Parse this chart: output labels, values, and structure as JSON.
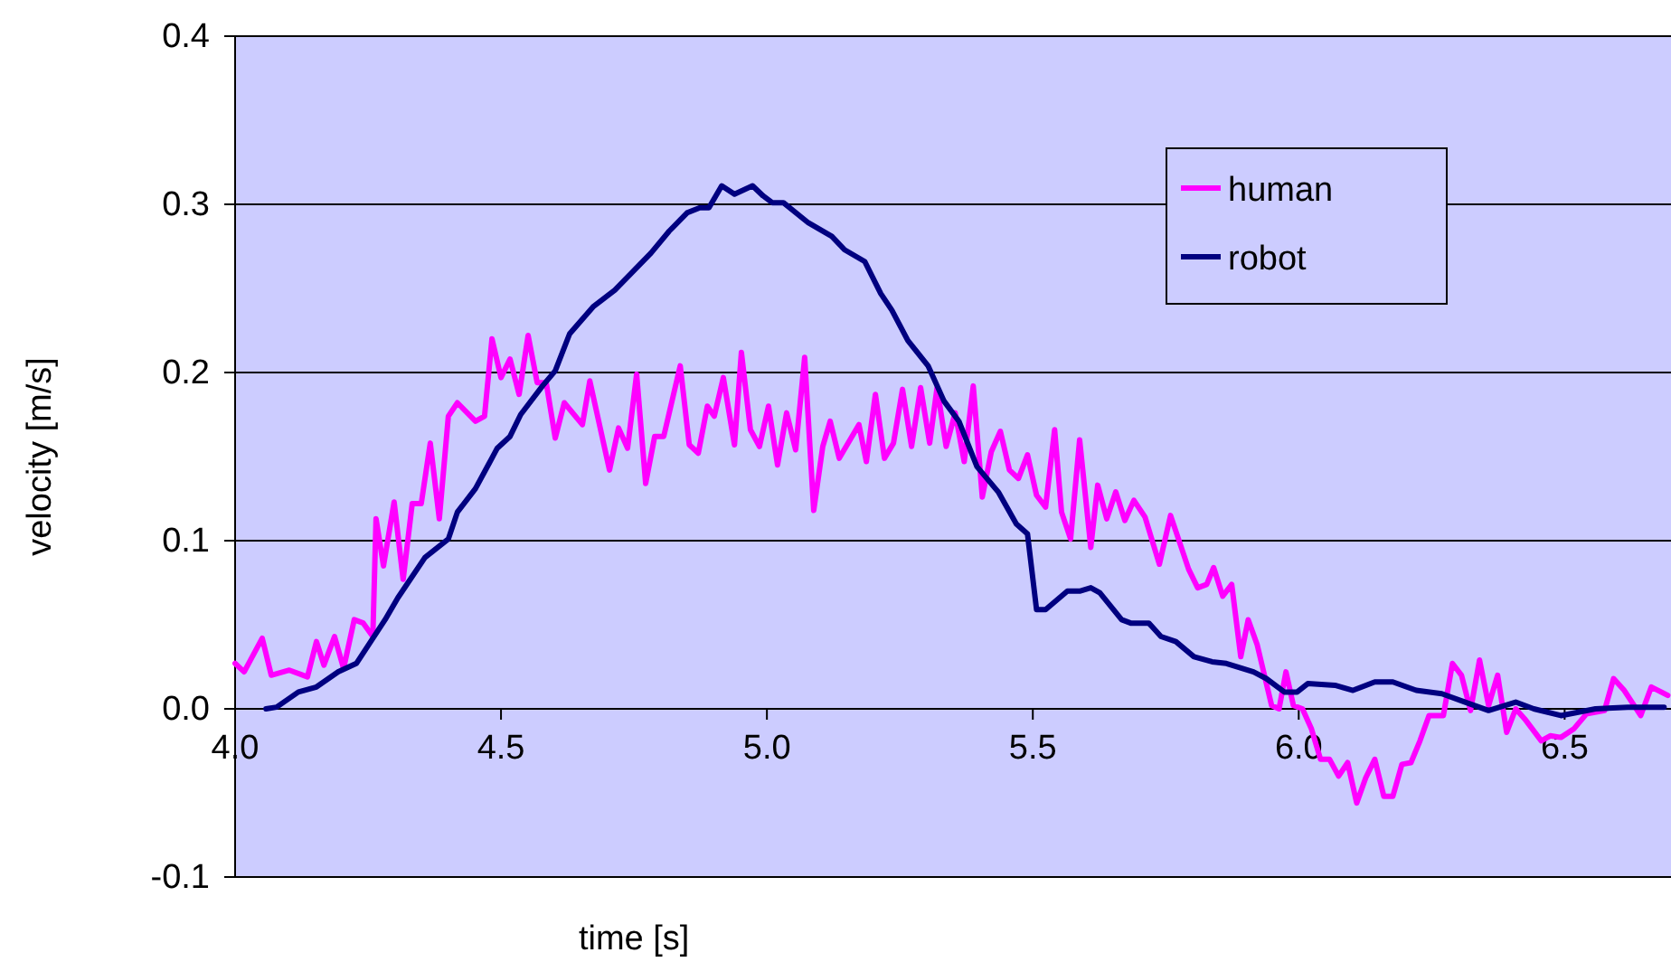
{
  "chart_data": {
    "type": "line",
    "xlabel": "time [s]",
    "ylabel": "velocity [m/s]",
    "xlim": [
      4.0,
      6.7
    ],
    "ylim": [
      -0.1,
      0.4
    ],
    "xticks": [
      {
        "value": 4.0,
        "label": "4.0"
      },
      {
        "value": 4.5,
        "label": "4.5"
      },
      {
        "value": 5.0,
        "label": "5.0"
      },
      {
        "value": 5.5,
        "label": "5.5"
      },
      {
        "value": 6.0,
        "label": "6.0"
      },
      {
        "value": 6.5,
        "label": "6.5"
      }
    ],
    "yticks": [
      {
        "value": -0.1,
        "label": "-0.1"
      },
      {
        "value": 0.0,
        "label": "0.0"
      },
      {
        "value": 0.1,
        "label": "0.1"
      },
      {
        "value": 0.2,
        "label": "0.2"
      },
      {
        "value": 0.3,
        "label": "0.3"
      },
      {
        "value": 0.4,
        "label": "0.4"
      }
    ],
    "grid": "y",
    "legend": "top right",
    "marker": "none",
    "line_style": "solid",
    "series": [
      {
        "name": "human",
        "color": "#ff00ff",
        "x": [
          4.0,
          4.017,
          4.051,
          4.068,
          4.102,
          4.136,
          4.153,
          4.167,
          4.187,
          4.204,
          4.224,
          4.241,
          4.259,
          4.265,
          4.279,
          4.299,
          4.316,
          4.333,
          4.35,
          4.367,
          4.384,
          4.401,
          4.418,
          4.452,
          4.469,
          4.483,
          4.5,
          4.517,
          4.534,
          4.551,
          4.568,
          4.585,
          4.602,
          4.619,
          4.653,
          4.667,
          4.704,
          4.721,
          4.738,
          4.755,
          4.772,
          4.789,
          4.806,
          4.837,
          4.854,
          4.871,
          4.888,
          4.901,
          4.918,
          4.939,
          4.952,
          4.969,
          4.986,
          5.003,
          5.02,
          5.037,
          5.054,
          5.071,
          5.088,
          5.105,
          5.119,
          5.136,
          5.173,
          5.187,
          5.204,
          5.221,
          5.238,
          5.255,
          5.272,
          5.289,
          5.306,
          5.32,
          5.337,
          5.354,
          5.371,
          5.388,
          5.405,
          5.422,
          5.439,
          5.456,
          5.473,
          5.49,
          5.507,
          5.524,
          5.541,
          5.554,
          5.571,
          5.588,
          5.609,
          5.622,
          5.639,
          5.656,
          5.673,
          5.69,
          5.711,
          5.738,
          5.759,
          5.793,
          5.81,
          5.827,
          5.84,
          5.857,
          5.874,
          5.891,
          5.905,
          5.922,
          5.949,
          5.963,
          5.976,
          5.99,
          6.007,
          6.024,
          6.041,
          6.058,
          6.075,
          6.092,
          6.109,
          6.126,
          6.143,
          6.16,
          6.177,
          6.194,
          6.211,
          6.228,
          6.245,
          6.272,
          6.289,
          6.306,
          6.323,
          6.34,
          6.357,
          6.374,
          6.391,
          6.408,
          6.425,
          6.456,
          6.473,
          6.493,
          6.517,
          6.541,
          6.575,
          6.592,
          6.612,
          6.643,
          6.663,
          6.694
        ],
        "values": [
          0.027,
          0.022,
          0.042,
          0.02,
          0.023,
          0.019,
          0.04,
          0.026,
          0.043,
          0.024,
          0.053,
          0.051,
          0.043,
          0.113,
          0.085,
          0.123,
          0.077,
          0.122,
          0.122,
          0.158,
          0.113,
          0.174,
          0.182,
          0.171,
          0.174,
          0.22,
          0.197,
          0.208,
          0.187,
          0.222,
          0.194,
          0.194,
          0.161,
          0.182,
          0.169,
          0.195,
          0.142,
          0.167,
          0.155,
          0.199,
          0.134,
          0.162,
          0.162,
          0.204,
          0.157,
          0.152,
          0.18,
          0.174,
          0.197,
          0.157,
          0.212,
          0.166,
          0.156,
          0.18,
          0.145,
          0.176,
          0.154,
          0.209,
          0.118,
          0.156,
          0.171,
          0.149,
          0.169,
          0.147,
          0.187,
          0.149,
          0.158,
          0.19,
          0.156,
          0.191,
          0.158,
          0.191,
          0.156,
          0.176,
          0.147,
          0.192,
          0.126,
          0.153,
          0.165,
          0.142,
          0.137,
          0.151,
          0.127,
          0.12,
          0.166,
          0.117,
          0.101,
          0.16,
          0.096,
          0.133,
          0.113,
          0.129,
          0.112,
          0.124,
          0.114,
          0.086,
          0.115,
          0.083,
          0.072,
          0.074,
          0.084,
          0.067,
          0.074,
          0.031,
          0.053,
          0.038,
          0.002,
          0.0,
          0.022,
          0.002,
          0.0,
          -0.012,
          -0.03,
          -0.03,
          -0.04,
          -0.032,
          -0.056,
          -0.041,
          -0.03,
          -0.052,
          -0.052,
          -0.033,
          -0.032,
          -0.019,
          -0.004,
          -0.004,
          0.027,
          0.02,
          -0.001,
          0.029,
          0.002,
          0.02,
          -0.014,
          0.0,
          -0.006,
          -0.019,
          -0.016,
          -0.017,
          -0.012,
          -0.003,
          -0.001,
          0.018,
          0.011,
          -0.004,
          0.013,
          0.008
        ]
      },
      {
        "name": "robot",
        "color": "#000080",
        "x": [
          4.058,
          4.078,
          4.119,
          4.153,
          4.194,
          4.228,
          4.255,
          4.282,
          4.306,
          4.357,
          4.401,
          4.418,
          4.452,
          4.476,
          4.493,
          4.517,
          4.537,
          4.578,
          4.602,
          4.629,
          4.673,
          4.714,
          4.748,
          4.782,
          4.816,
          4.85,
          4.874,
          4.891,
          4.915,
          4.939,
          4.973,
          4.993,
          5.01,
          5.031,
          5.078,
          5.122,
          5.146,
          5.184,
          5.214,
          5.235,
          5.265,
          5.303,
          5.333,
          5.361,
          5.395,
          5.435,
          5.469,
          5.49,
          5.507,
          5.524,
          5.565,
          5.588,
          5.609,
          5.626,
          5.667,
          5.684,
          5.718,
          5.741,
          5.769,
          5.803,
          5.837,
          5.864,
          5.915,
          5.939,
          5.973,
          5.997,
          6.017,
          6.068,
          6.102,
          6.143,
          6.177,
          6.221,
          6.269,
          6.313,
          6.357,
          6.408,
          6.442,
          6.493,
          6.558,
          6.619,
          6.687
        ],
        "values": [
          0.0,
          0.001,
          0.01,
          0.013,
          0.022,
          0.027,
          0.04,
          0.053,
          0.066,
          0.09,
          0.101,
          0.117,
          0.131,
          0.145,
          0.155,
          0.162,
          0.175,
          0.192,
          0.201,
          0.223,
          0.239,
          0.249,
          0.26,
          0.271,
          0.284,
          0.295,
          0.298,
          0.298,
          0.311,
          0.306,
          0.311,
          0.305,
          0.301,
          0.301,
          0.289,
          0.281,
          0.273,
          0.266,
          0.247,
          0.237,
          0.219,
          0.204,
          0.183,
          0.171,
          0.144,
          0.129,
          0.11,
          0.104,
          0.059,
          0.059,
          0.07,
          0.07,
          0.072,
          0.069,
          0.053,
          0.051,
          0.051,
          0.043,
          0.04,
          0.031,
          0.028,
          0.027,
          0.022,
          0.018,
          0.01,
          0.01,
          0.015,
          0.014,
          0.011,
          0.016,
          0.016,
          0.011,
          0.009,
          0.004,
          -0.001,
          0.004,
          0.0,
          -0.004,
          0.0,
          0.001,
          0.001
        ]
      }
    ]
  }
}
